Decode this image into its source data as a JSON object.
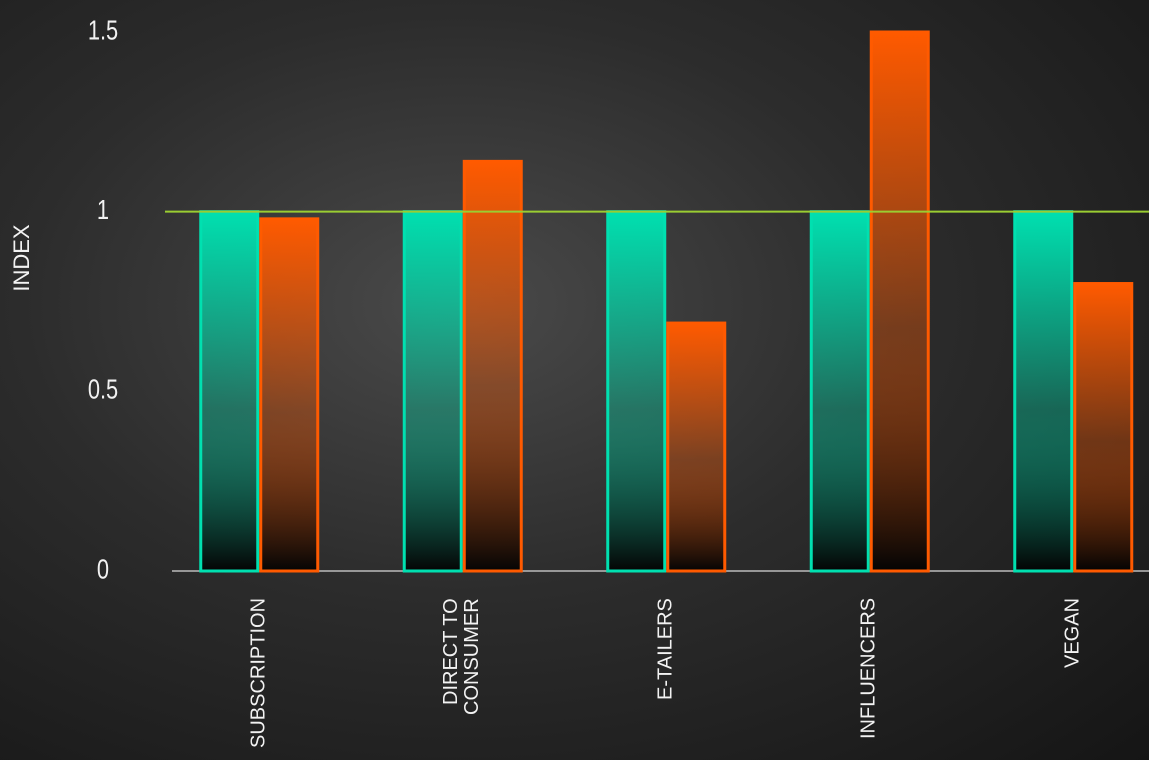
{
  "chart_data": {
    "type": "bar",
    "y_label": "INDEX",
    "categories": [
      "SUBSCRIPTION",
      "DIRECT TO CONSUMER",
      "E-TAILERS",
      "INFLUENCERS",
      "VEGAN"
    ],
    "series": [
      {
        "color": "#00e0b0",
        "values": [
          1,
          1,
          1,
          1,
          1
        ]
      },
      {
        "color": "#ff5a00",
        "values": [
          0.98,
          1.14,
          0.69,
          1.5,
          0.8
        ]
      }
    ],
    "ylim": [
      0,
      1.5
    ],
    "yticks": [
      0,
      0.5,
      1,
      1.5
    ],
    "reference_line": 1,
    "reference_color": "#9acd32"
  }
}
